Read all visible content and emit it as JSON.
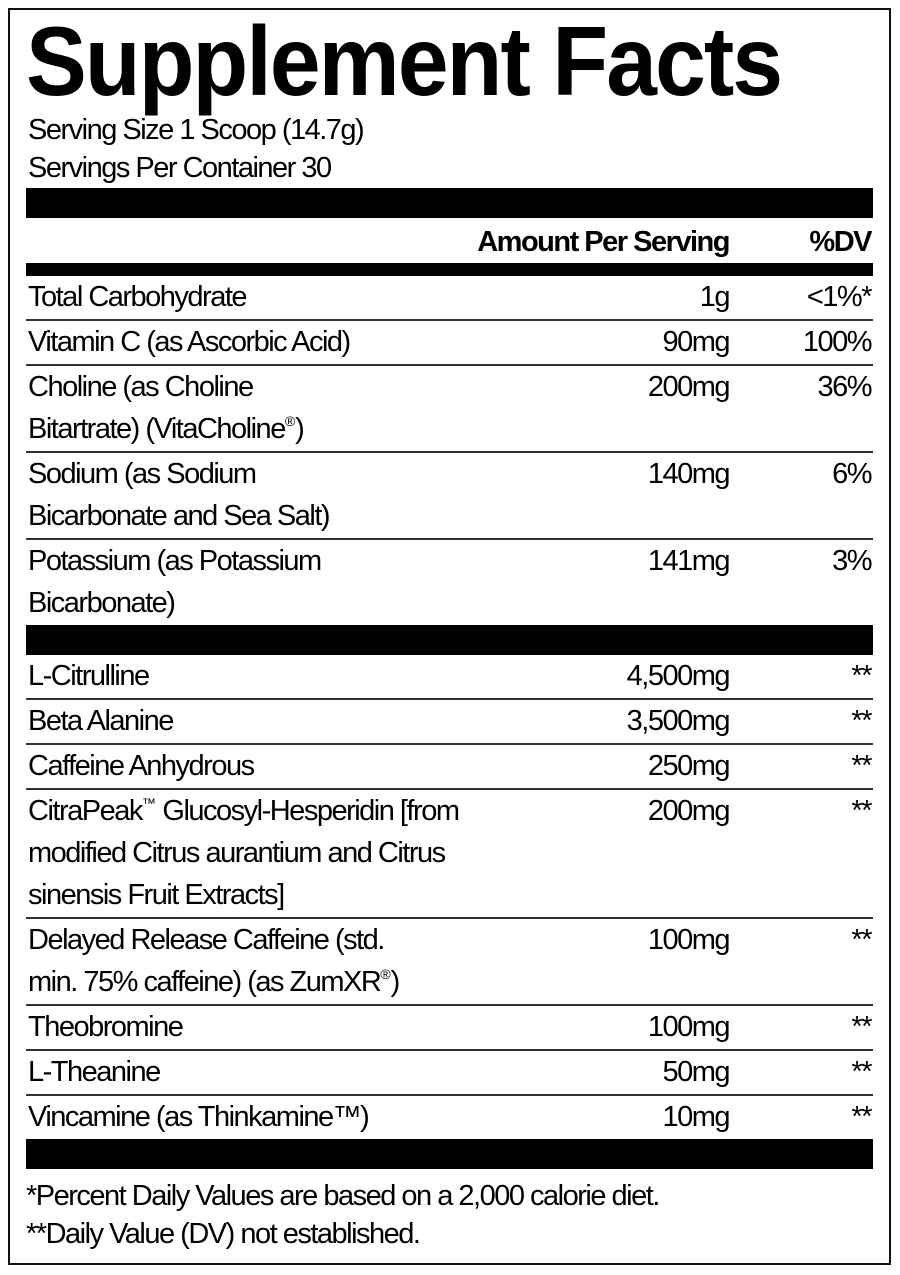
{
  "title": "Supplement Facts",
  "serving_size": "Serving Size 1 Scoop (14.7g)",
  "servings_per_container": "Servings Per Container 30",
  "header": {
    "amount": "Amount Per Serving",
    "dv": "%DV"
  },
  "nutrients": [
    {
      "name": "Total Carbohydrate",
      "amount": "1g",
      "dv": "<1%*"
    },
    {
      "name": "Vitamin C (as Ascorbic Acid)",
      "amount": "90mg",
      "dv": "100%"
    },
    {
      "name": "Choline (as Choline Bitartrate) (VitaCholine®)",
      "amount": "200mg",
      "dv": "36%"
    },
    {
      "name": "Sodium (as Sodium Bicarbonate and Sea Salt)",
      "amount": "140mg",
      "dv": "6%"
    },
    {
      "name": "Potassium (as Potassium Bicarbonate)",
      "amount": "141mg",
      "dv": "3%"
    }
  ],
  "ingredients": [
    {
      "name": "L-Citrulline",
      "amount": "4,500mg",
      "dv": "**"
    },
    {
      "name": "Beta Alanine",
      "amount": "3,500mg",
      "dv": "**"
    },
    {
      "name": "Caffeine Anhydrous",
      "amount": "250mg",
      "dv": "**"
    },
    {
      "name": "CitraPeak™ Glucosyl-Hesperidin [from modified Citrus aurantium and Citrus sinensis Fruit Extracts]",
      "amount": "200mg",
      "dv": "**"
    },
    {
      "name": "Delayed Release Caffeine (std. min. 75% caffeine) (as ZumXR®)",
      "amount": "100mg",
      "dv": "**"
    },
    {
      "name": "Theobromine",
      "amount": "100mg",
      "dv": "**"
    },
    {
      "name": "L-Theanine",
      "amount": "50mg",
      "dv": "**"
    },
    {
      "name": "Vincamine (as Thinkamine™)",
      "amount": "10mg",
      "dv": "**"
    }
  ],
  "footnotes": [
    "*Percent Daily Values are based on a 2,000 calorie diet.",
    "**Daily Value (DV) not established."
  ]
}
